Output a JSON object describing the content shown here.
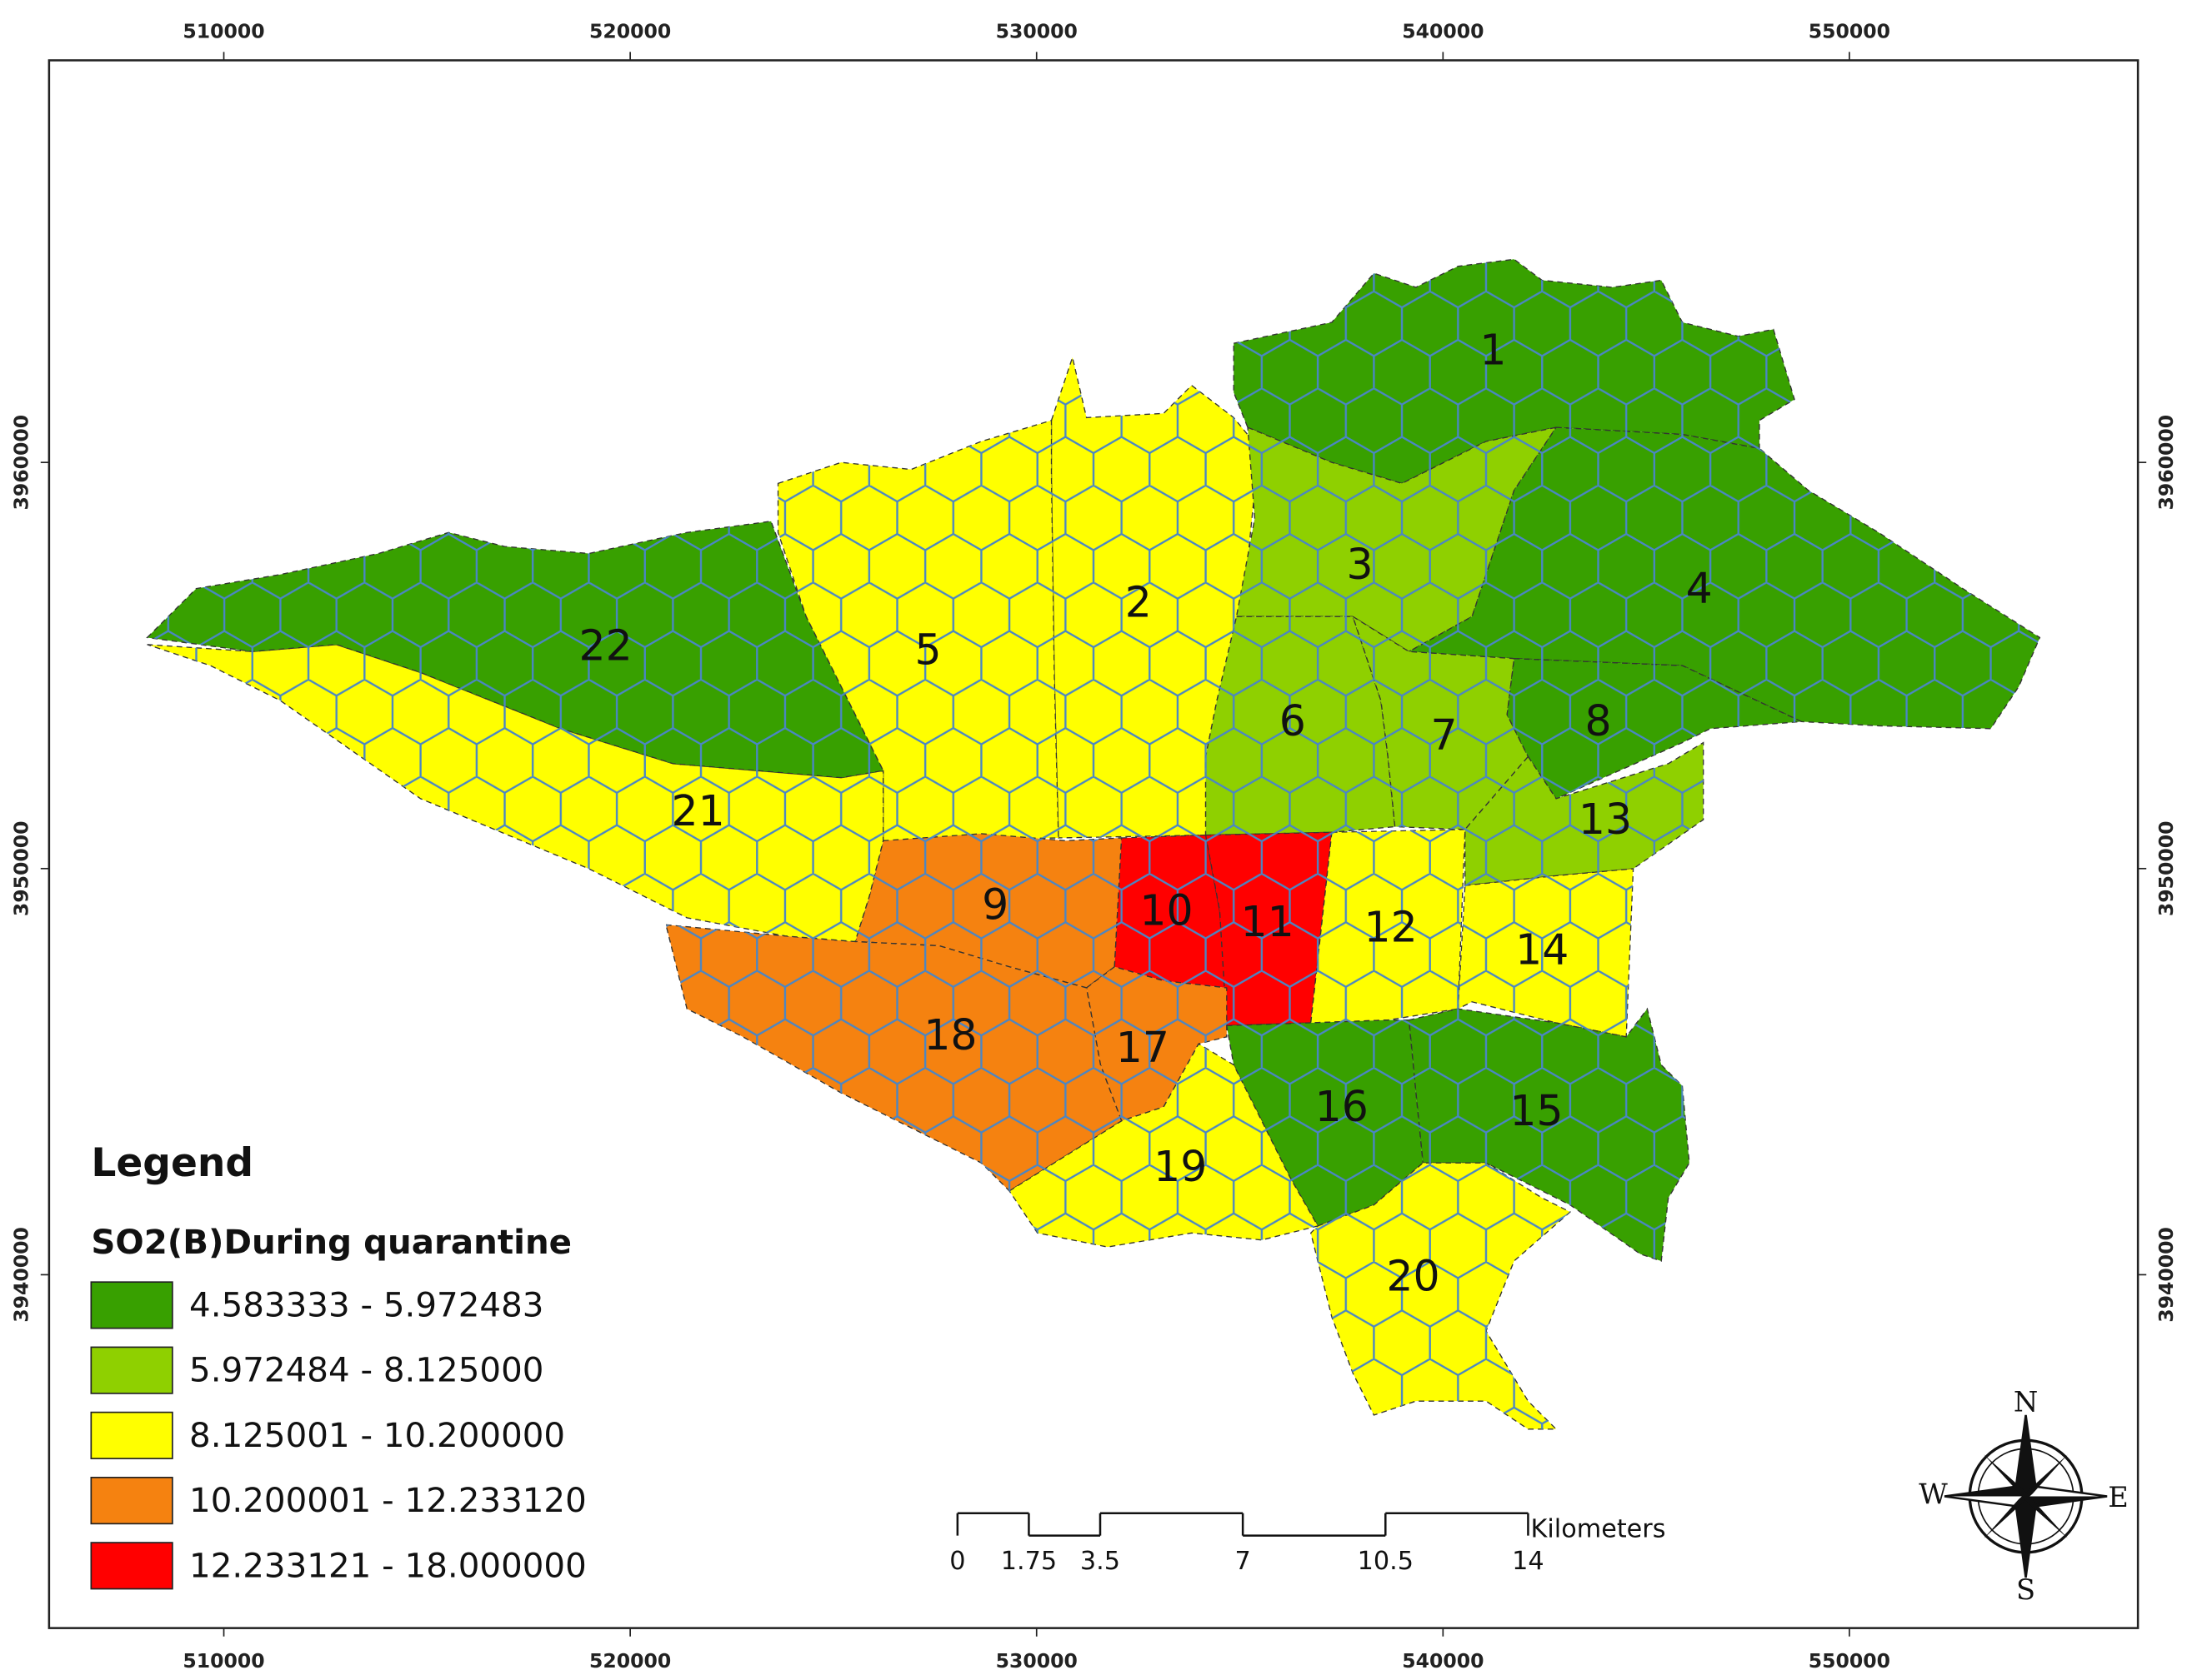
{
  "map": {
    "xticks": [
      510000,
      520000,
      530000,
      540000,
      550000
    ],
    "yticks": [
      3940000,
      3950000,
      3960000
    ],
    "xlim": [
      505700,
      557100
    ],
    "ylim": [
      3931300,
      3969900
    ],
    "districts": [
      {
        "label": "1",
        "class": 0
      },
      {
        "label": "2",
        "class": 2
      },
      {
        "label": "3",
        "class": 1
      },
      {
        "label": "4",
        "class": 0
      },
      {
        "label": "5",
        "class": 2
      },
      {
        "label": "6",
        "class": 1
      },
      {
        "label": "7",
        "class": 1
      },
      {
        "label": "8",
        "class": 0
      },
      {
        "label": "9",
        "class": 3
      },
      {
        "label": "10",
        "class": 4
      },
      {
        "label": "11",
        "class": 4
      },
      {
        "label": "12",
        "class": 2
      },
      {
        "label": "13",
        "class": 1
      },
      {
        "label": "14",
        "class": 2
      },
      {
        "label": "15",
        "class": 0
      },
      {
        "label": "16",
        "class": 0
      },
      {
        "label": "17",
        "class": 3
      },
      {
        "label": "18",
        "class": 3
      },
      {
        "label": "19",
        "class": 2
      },
      {
        "label": "20",
        "class": 2
      },
      {
        "label": "21",
        "class": 2
      },
      {
        "label": "22",
        "class": 0
      }
    ],
    "legend": {
      "title": "Legend",
      "subtitle": "SO2(B)During quarantine",
      "classes": [
        {
          "label": "4.583333 - 5.972483",
          "color": "#38a000"
        },
        {
          "label": "5.972484 - 8.125000",
          "color": "#8fd000"
        },
        {
          "label": "8.125001 - 10.200000",
          "color": "#ffff00"
        },
        {
          "label": "10.200001 - 12.233120",
          "color": "#f58210"
        },
        {
          "label": "12.233121 - 18.000000",
          "color": "#ff0000"
        }
      ]
    },
    "scale_bar": {
      "ticks": [
        0,
        1.75,
        3.5,
        7,
        10.5,
        14
      ],
      "unit": "Kilometers"
    },
    "compass": {
      "n": "N",
      "e": "E",
      "s": "S",
      "w": "W"
    }
  }
}
